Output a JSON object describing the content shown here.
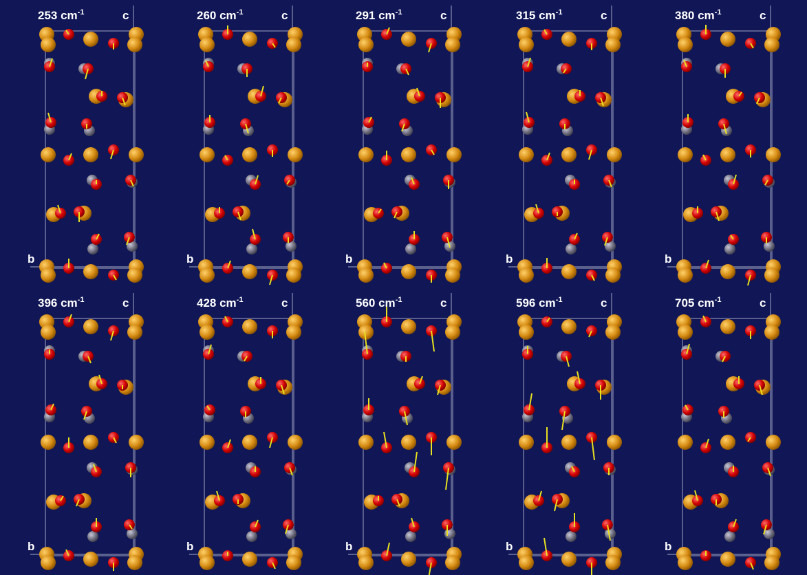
{
  "panels": [
    {
      "label": "253 cm",
      "exponent": "-1",
      "c_axis": "c",
      "b_axis": "b"
    },
    {
      "label": "260 cm",
      "exponent": "-1",
      "c_axis": "c",
      "b_axis": "b"
    },
    {
      "label": "291 cm",
      "exponent": "-1",
      "c_axis": "c",
      "b_axis": "b"
    },
    {
      "label": "315 cm",
      "exponent": "-1",
      "c_axis": "c",
      "b_axis": "b"
    },
    {
      "label": "380 cm",
      "exponent": "-1",
      "c_axis": "c",
      "b_axis": "b"
    },
    {
      "label": "396 cm",
      "exponent": "-1",
      "c_axis": "c",
      "b_axis": "b"
    },
    {
      "label": "428 cm",
      "exponent": "-1",
      "c_axis": "c",
      "b_axis": "b"
    },
    {
      "label": "560 cm",
      "exponent": "-1",
      "c_axis": "c",
      "b_axis": "b"
    },
    {
      "label": "596 cm",
      "exponent": "-1",
      "c_axis": "c",
      "b_axis": "b"
    },
    {
      "label": "705 cm",
      "exponent": "-1",
      "c_axis": "c",
      "b_axis": "b"
    }
  ]
}
